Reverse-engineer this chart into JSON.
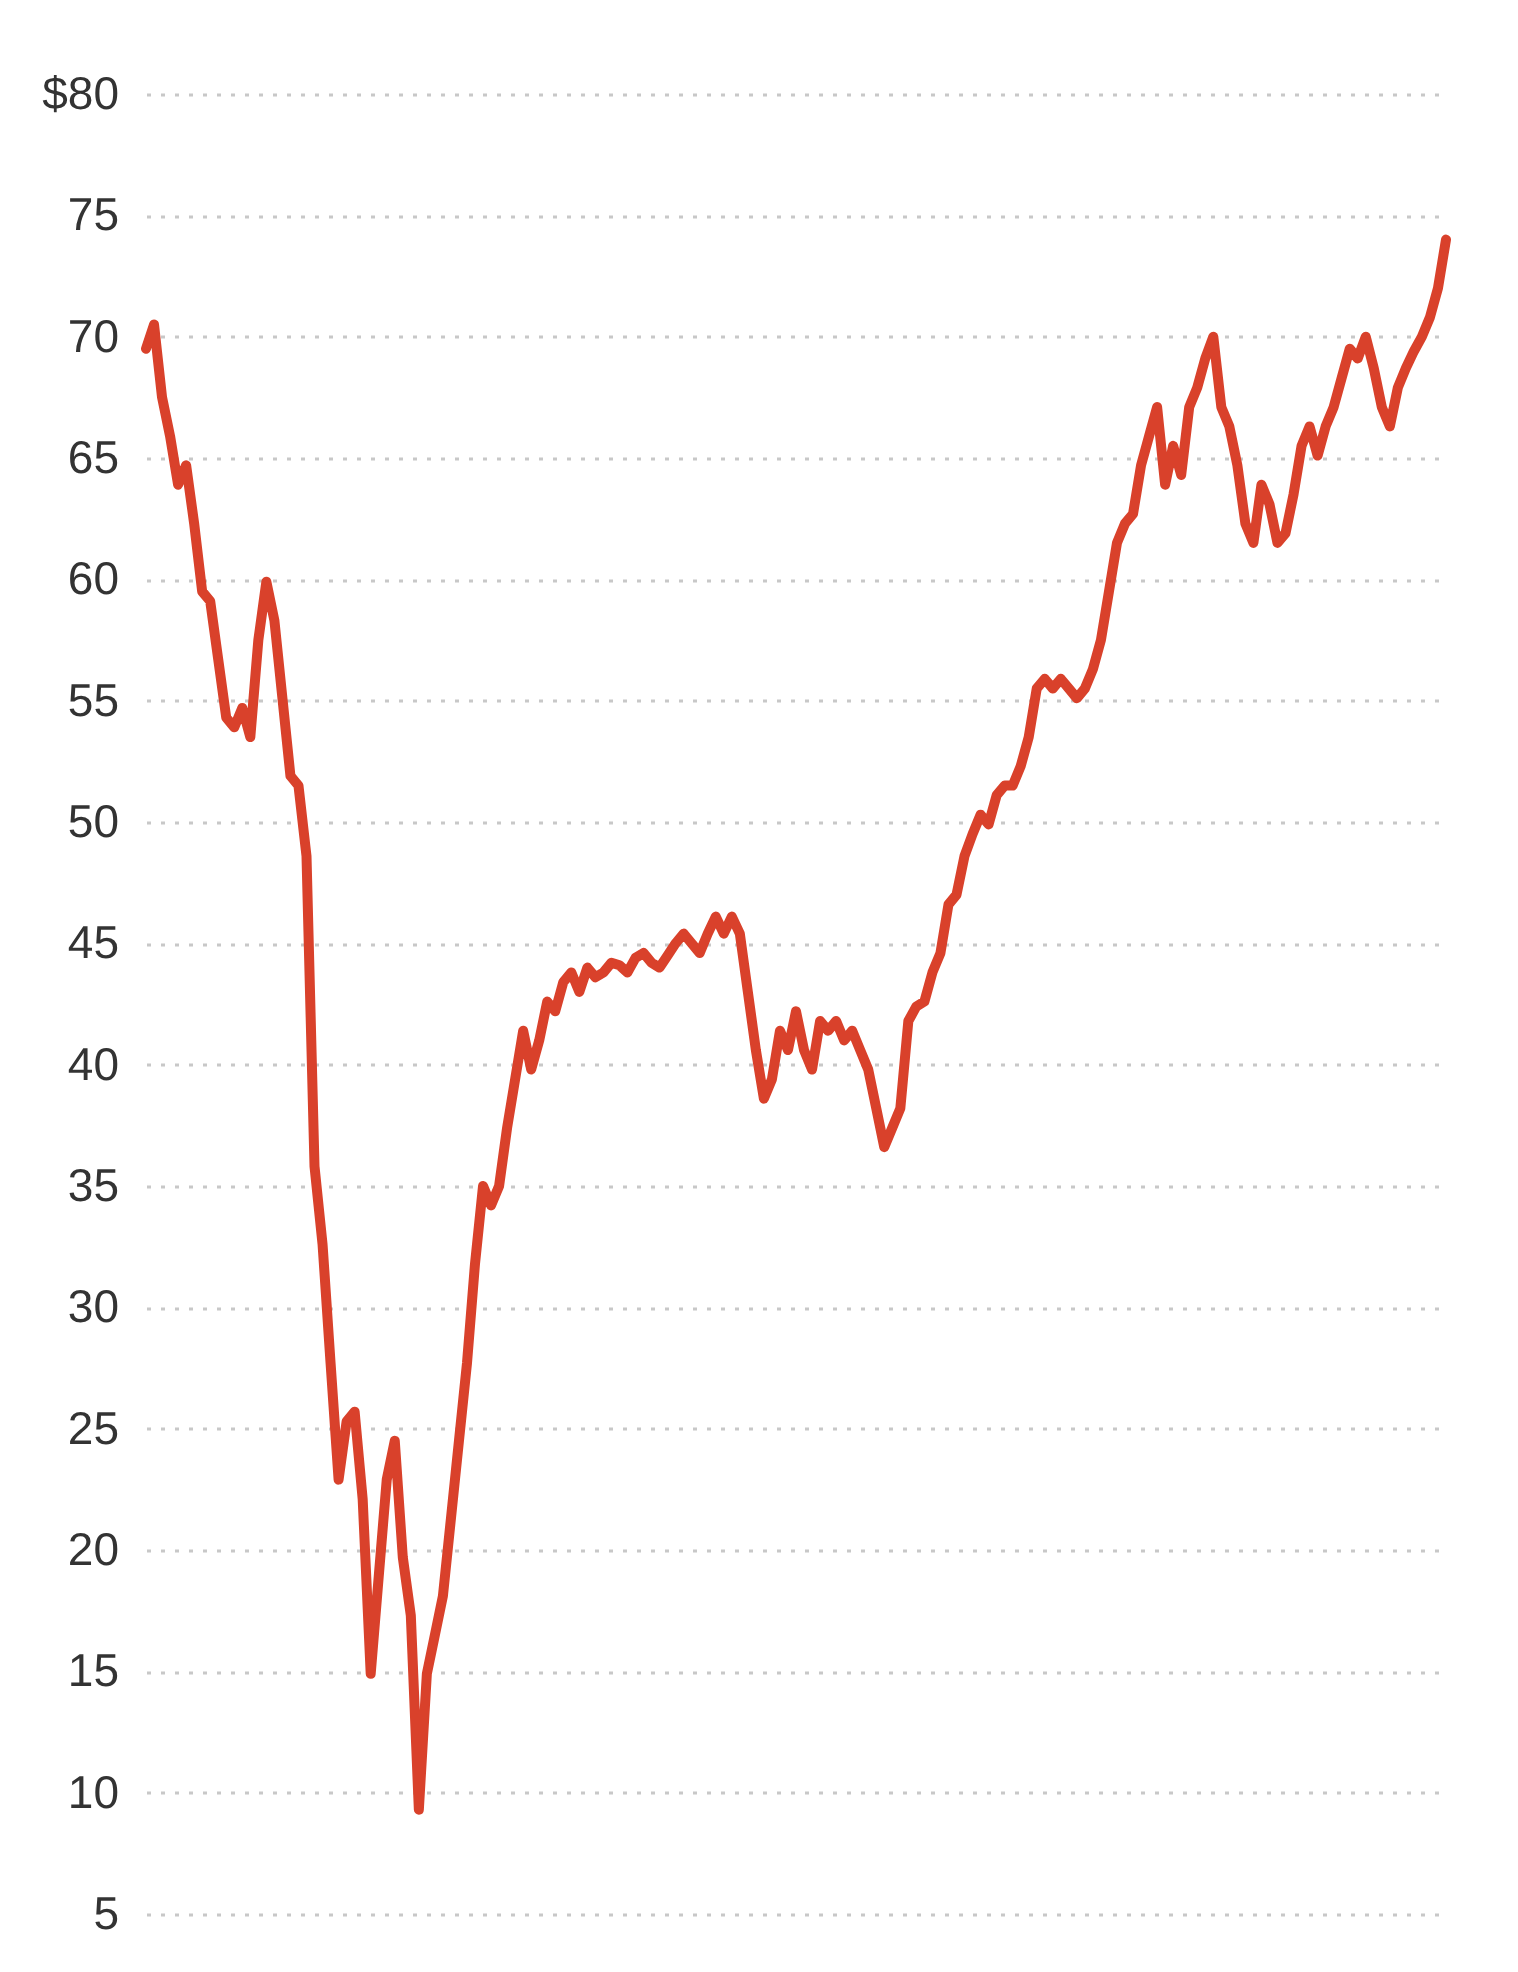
{
  "chart_data": {
    "type": "line",
    "categories": [
      null,
      null,
      null,
      null,
      null,
      null,
      null,
      null,
      null,
      null,
      null,
      null,
      null,
      null,
      null,
      null,
      null,
      null,
      null,
      null,
      null,
      null,
      null,
      null,
      null,
      null,
      null,
      null,
      null,
      null,
      null,
      null,
      null,
      null,
      null,
      null,
      null,
      null,
      null,
      null,
      null,
      null,
      null,
      null,
      null,
      null,
      null,
      null,
      null,
      null,
      null,
      null,
      null,
      null,
      null,
      null,
      null,
      null,
      null,
      null,
      null,
      null,
      null,
      null,
      null,
      null,
      null,
      null,
      null,
      null,
      null,
      null,
      null,
      null,
      null,
      null,
      null,
      null,
      null,
      null,
      null,
      null,
      null,
      null,
      null,
      null,
      null,
      null,
      null,
      null,
      null,
      null,
      null,
      null,
      null,
      null,
      null,
      null,
      null,
      null,
      null,
      null,
      null,
      null,
      null,
      null,
      null,
      null,
      null,
      null,
      null,
      null,
      null,
      null,
      null,
      null,
      null,
      null,
      null,
      null,
      null,
      null,
      null,
      null,
      null,
      null,
      null,
      null,
      null,
      null,
      null,
      null,
      null,
      null,
      null,
      null,
      null,
      null,
      null,
      null,
      null,
      null,
      null,
      null,
      null,
      null,
      null,
      null,
      null,
      null,
      null,
      null,
      null,
      null,
      null,
      null,
      null,
      null,
      null,
      null,
      null,
      null,
      null
    ],
    "series": [
      {
        "color": "#d9412b",
        "values": [
          69.5,
          70.5,
          67.5,
          65.9,
          63.9,
          64.7,
          62.3,
          59.5,
          59.1,
          56.7,
          54.3,
          53.9,
          54.7,
          53.5,
          57.5,
          59.9,
          58.3,
          55.1,
          51.9,
          51.5,
          48.6,
          35.8,
          32.6,
          27.7,
          22.9,
          25.3,
          25.7,
          22.1,
          14.9,
          18.9,
          22.9,
          24.5,
          19.7,
          17.3,
          9.3,
          14.9,
          16.5,
          18.1,
          21.3,
          24.5,
          27.7,
          31.8,
          35.0,
          34.2,
          35.0,
          37.4,
          39.4,
          41.4,
          39.8,
          41.0,
          42.6,
          42.2,
          43.4,
          43.8,
          43.0,
          44.0,
          43.6,
          43.8,
          44.2,
          44.1,
          43.8,
          44.4,
          44.6,
          44.2,
          44.0,
          44.5,
          45.0,
          45.4,
          45.0,
          44.6,
          45.4,
          46.1,
          45.4,
          46.1,
          45.4,
          43.0,
          40.6,
          38.6,
          39.4,
          41.4,
          40.6,
          42.2,
          40.6,
          39.8,
          41.8,
          41.4,
          41.8,
          41.0,
          41.4,
          40.6,
          39.8,
          38.2,
          36.6,
          37.4,
          38.2,
          41.8,
          42.4,
          42.6,
          43.8,
          44.6,
          46.6,
          47.0,
          48.6,
          49.5,
          50.3,
          49.9,
          51.1,
          51.5,
          51.5,
          52.3,
          53.5,
          55.5,
          55.9,
          55.5,
          55.9,
          55.5,
          55.1,
          55.5,
          56.3,
          57.5,
          59.5,
          61.5,
          62.3,
          62.7,
          64.7,
          65.9,
          67.1,
          63.9,
          65.5,
          64.3,
          67.1,
          67.9,
          69.1,
          70.0,
          67.1,
          66.3,
          64.7,
          62.3,
          61.5,
          63.9,
          63.1,
          61.5,
          61.9,
          63.5,
          65.5,
          66.3,
          65.1,
          66.3,
          67.1,
          68.3,
          69.5,
          69.1,
          70.0,
          68.7,
          67.1,
          66.3,
          67.9,
          68.7,
          69.4,
          70.0,
          70.8,
          72.0,
          74.0
        ]
      }
    ],
    "ylim": [
      5,
      80
    ],
    "yticks": [
      {
        "value": 80,
        "label": "$80"
      },
      75,
      70,
      65,
      60,
      55,
      50,
      45,
      40,
      35,
      30,
      25,
      20,
      15,
      10,
      5
    ],
    "grid": "y",
    "tick_labels": "y",
    "line_style": "solid",
    "marker": "none"
  }
}
